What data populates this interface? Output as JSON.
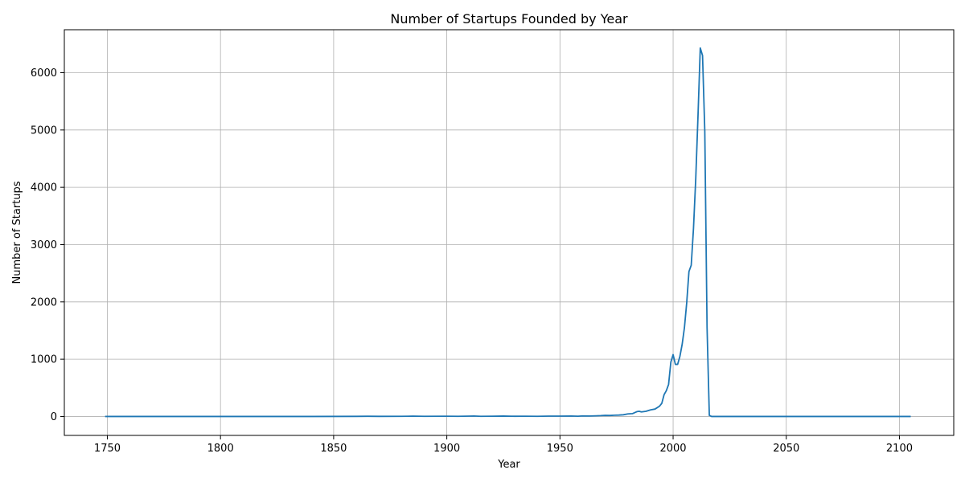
{
  "chart_data": {
    "type": "line",
    "title": "Number of Startups Founded by Year",
    "xlabel": "Year",
    "ylabel": "Number of Startups",
    "xlim": [
      1731,
      2124
    ],
    "ylim": [
      -330,
      6750
    ],
    "x_ticks": [
      1750,
      1800,
      1850,
      1900,
      1950,
      2000,
      2050,
      2100
    ],
    "y_ticks": [
      0,
      1000,
      2000,
      3000,
      4000,
      5000,
      6000
    ],
    "grid": true,
    "line_color": "#1f77b4",
    "series": [
      {
        "points": [
          [
            1749,
            0
          ],
          [
            1760,
            0
          ],
          [
            1780,
            0
          ],
          [
            1800,
            0
          ],
          [
            1820,
            0
          ],
          [
            1840,
            0
          ],
          [
            1860,
            2
          ],
          [
            1865,
            4
          ],
          [
            1870,
            2
          ],
          [
            1880,
            3
          ],
          [
            1885,
            6
          ],
          [
            1890,
            3
          ],
          [
            1900,
            5
          ],
          [
            1905,
            3
          ],
          [
            1910,
            6
          ],
          [
            1912,
            8
          ],
          [
            1915,
            3
          ],
          [
            1920,
            5
          ],
          [
            1925,
            7
          ],
          [
            1930,
            4
          ],
          [
            1935,
            5
          ],
          [
            1940,
            3
          ],
          [
            1945,
            6
          ],
          [
            1950,
            6
          ],
          [
            1955,
            8
          ],
          [
            1958,
            5
          ],
          [
            1960,
            10
          ],
          [
            1963,
            8
          ],
          [
            1966,
            12
          ],
          [
            1968,
            15
          ],
          [
            1970,
            20
          ],
          [
            1972,
            18
          ],
          [
            1974,
            22
          ],
          [
            1976,
            25
          ],
          [
            1978,
            30
          ],
          [
            1980,
            45
          ],
          [
            1982,
            50
          ],
          [
            1984,
            85
          ],
          [
            1985,
            90
          ],
          [
            1986,
            80
          ],
          [
            1988,
            90
          ],
          [
            1990,
            115
          ],
          [
            1992,
            130
          ],
          [
            1994,
            180
          ],
          [
            1995,
            230
          ],
          [
            1996,
            380
          ],
          [
            1997,
            450
          ],
          [
            1998,
            560
          ],
          [
            1999,
            950
          ],
          [
            2000,
            1080
          ],
          [
            2001,
            910
          ],
          [
            2002,
            910
          ],
          [
            2003,
            1050
          ],
          [
            2004,
            1260
          ],
          [
            2005,
            1550
          ],
          [
            2006,
            1980
          ],
          [
            2007,
            2530
          ],
          [
            2008,
            2640
          ],
          [
            2009,
            3280
          ],
          [
            2010,
            4150
          ],
          [
            2011,
            5250
          ],
          [
            2012,
            6430
          ],
          [
            2013,
            6300
          ],
          [
            2014,
            4980
          ],
          [
            2015,
            1550
          ],
          [
            2016,
            20
          ],
          [
            2017,
            0
          ],
          [
            2030,
            0
          ],
          [
            2050,
            0
          ],
          [
            2070,
            0
          ],
          [
            2090,
            0
          ],
          [
            2105,
            0
          ]
        ]
      }
    ]
  }
}
